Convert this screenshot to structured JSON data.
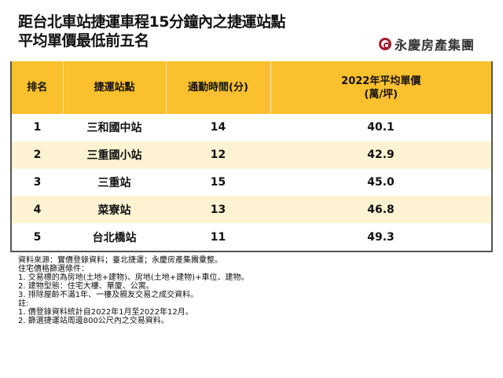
{
  "title": {
    "line1": "距台北車站捷運車程15分鐘內之捷運站點",
    "line2": "平均單價最低前五名"
  },
  "logo": {
    "text": "永慶房產集團",
    "color": "#9b1c2c"
  },
  "table": {
    "headers": [
      "排名",
      "捷運站點",
      "通勤時間(分)",
      "2022年平均單價",
      "(萬/坪)"
    ],
    "rows": [
      {
        "rank": "1",
        "station": "三和國中站",
        "time": "14",
        "price": "40.1"
      },
      {
        "rank": "2",
        "station": "三重國小站",
        "time": "12",
        "price": "42.9"
      },
      {
        "rank": "3",
        "station": "三重站",
        "time": "15",
        "price": "45.0"
      },
      {
        "rank": "4",
        "station": "菜寮站",
        "time": "13",
        "price": "46.8"
      },
      {
        "rank": "5",
        "station": "台北橋站",
        "time": "11",
        "price": "49.3"
      }
    ],
    "header_color": "#fbc02d",
    "alt_row_color": "#fdf3d2"
  },
  "footnotes": [
    "資料來源：實價登錄資料；臺北捷運；永慶房產集團彙整。",
    "住宅價格篩選條件：",
    "1.  交易標的為房地(土地+建物)、房地(土地+建物)+車位、建物。",
    "2.  建物型態：住宅大樓、華廈、公寓。",
    "3.  排除屋齡不滿1年、一樓及親友交易之成交資料。",
    "註:",
    "1.  價登錄資料統計自2022年1月至2022年12月。",
    "2.  篩選捷運站周邊800公尺內之交易資料。"
  ]
}
